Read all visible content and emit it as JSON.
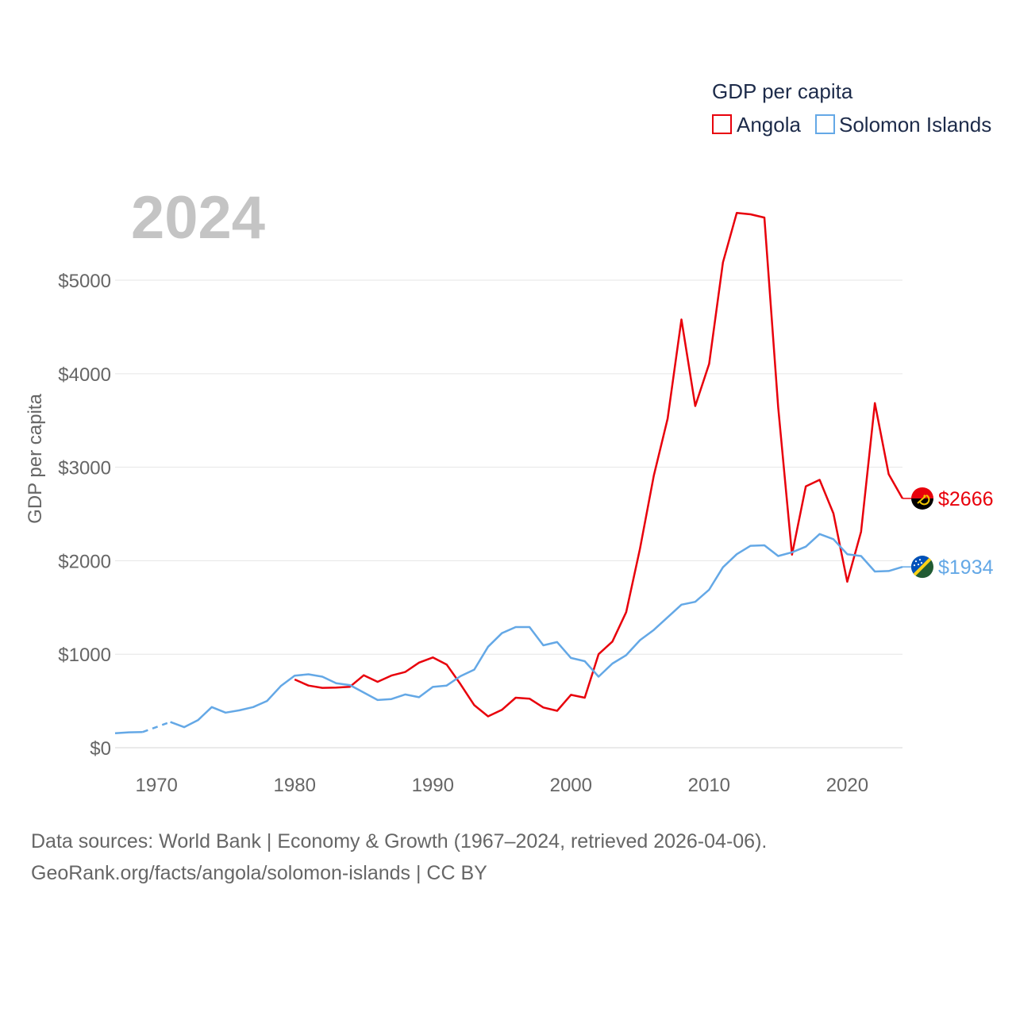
{
  "chart_data": {
    "type": "line",
    "title": "GDP per capita",
    "year_label": "2024",
    "ylabel": "GDP per capita",
    "xlabel": "",
    "xlim": [
      1967,
      2024
    ],
    "ylim": [
      0,
      5900
    ],
    "x_ticks": [
      1970,
      1980,
      1990,
      2000,
      2010,
      2020
    ],
    "y_ticks": [
      0,
      1000,
      2000,
      3000,
      4000,
      5000
    ],
    "y_tick_labels": [
      "$0",
      "$1000",
      "$2000",
      "$3000",
      "$4000",
      "$5000"
    ],
    "grid": true,
    "legend_title": "GDP per capita",
    "legend_position": "top-right",
    "series": [
      {
        "name": "Angola",
        "color": "#e8000b",
        "end_label": "$2666",
        "flag_icon": "angola-flag-icon",
        "points": [
          [
            1980,
            730
          ],
          [
            1981,
            665
          ],
          [
            1982,
            640
          ],
          [
            1983,
            643
          ],
          [
            1984,
            652
          ],
          [
            1985,
            775
          ],
          [
            1986,
            705
          ],
          [
            1987,
            772
          ],
          [
            1988,
            810
          ],
          [
            1989,
            910
          ],
          [
            1990,
            965
          ],
          [
            1991,
            890
          ],
          [
            1992,
            680
          ],
          [
            1993,
            455
          ],
          [
            1994,
            335
          ],
          [
            1995,
            405
          ],
          [
            1996,
            535
          ],
          [
            1997,
            525
          ],
          [
            1998,
            430
          ],
          [
            1999,
            395
          ],
          [
            2000,
            565
          ],
          [
            2001,
            535
          ],
          [
            2002,
            1000
          ],
          [
            2003,
            1135
          ],
          [
            2004,
            1450
          ],
          [
            2005,
            2130
          ],
          [
            2006,
            2910
          ],
          [
            2007,
            3520
          ],
          [
            2008,
            4580
          ],
          [
            2009,
            3655
          ],
          [
            2010,
            4105
          ],
          [
            2011,
            5190
          ],
          [
            2012,
            5720
          ],
          [
            2013,
            5705
          ],
          [
            2014,
            5670
          ],
          [
            2015,
            3640
          ],
          [
            2016,
            2065
          ],
          [
            2017,
            2795
          ],
          [
            2018,
            2865
          ],
          [
            2019,
            2505
          ],
          [
            2020,
            1775
          ],
          [
            2021,
            2310
          ],
          [
            2022,
            3685
          ],
          [
            2023,
            2925
          ],
          [
            2024,
            2666
          ]
        ]
      },
      {
        "name": "Solomon Islands",
        "color": "#64a8e6",
        "end_label": "$1934",
        "flag_icon": "solomon-islands-flag-icon",
        "gap_years": [
          1969,
          1971
        ],
        "points": [
          [
            1967,
            155
          ],
          [
            1968,
            165
          ],
          [
            1969,
            168
          ],
          [
            1971,
            275
          ],
          [
            1972,
            220
          ],
          [
            1973,
            295
          ],
          [
            1974,
            435
          ],
          [
            1975,
            375
          ],
          [
            1976,
            400
          ],
          [
            1977,
            435
          ],
          [
            1978,
            500
          ],
          [
            1979,
            660
          ],
          [
            1980,
            770
          ],
          [
            1981,
            785
          ],
          [
            1982,
            760
          ],
          [
            1983,
            690
          ],
          [
            1984,
            670
          ],
          [
            1985,
            590
          ],
          [
            1986,
            510
          ],
          [
            1987,
            520
          ],
          [
            1988,
            570
          ],
          [
            1989,
            540
          ],
          [
            1990,
            650
          ],
          [
            1991,
            665
          ],
          [
            1992,
            765
          ],
          [
            1993,
            835
          ],
          [
            1994,
            1080
          ],
          [
            1995,
            1225
          ],
          [
            1996,
            1290
          ],
          [
            1997,
            1290
          ],
          [
            1998,
            1095
          ],
          [
            1999,
            1130
          ],
          [
            2000,
            960
          ],
          [
            2001,
            925
          ],
          [
            2002,
            760
          ],
          [
            2003,
            900
          ],
          [
            2004,
            990
          ],
          [
            2005,
            1150
          ],
          [
            2006,
            1260
          ],
          [
            2007,
            1395
          ],
          [
            2008,
            1530
          ],
          [
            2009,
            1560
          ],
          [
            2010,
            1690
          ],
          [
            2011,
            1930
          ],
          [
            2012,
            2070
          ],
          [
            2013,
            2160
          ],
          [
            2014,
            2165
          ],
          [
            2015,
            2050
          ],
          [
            2016,
            2090
          ],
          [
            2017,
            2150
          ],
          [
            2018,
            2285
          ],
          [
            2019,
            2230
          ],
          [
            2020,
            2070
          ],
          [
            2021,
            2050
          ],
          [
            2022,
            1885
          ],
          [
            2023,
            1890
          ],
          [
            2024,
            1934
          ]
        ]
      }
    ]
  },
  "footer": {
    "sources": "Data sources: World Bank | Economy & Growth (1967–2024, retrieved 2026-04-06).",
    "attribution": "GeoRank.org/facts/angola/solomon-islands | CC BY"
  }
}
